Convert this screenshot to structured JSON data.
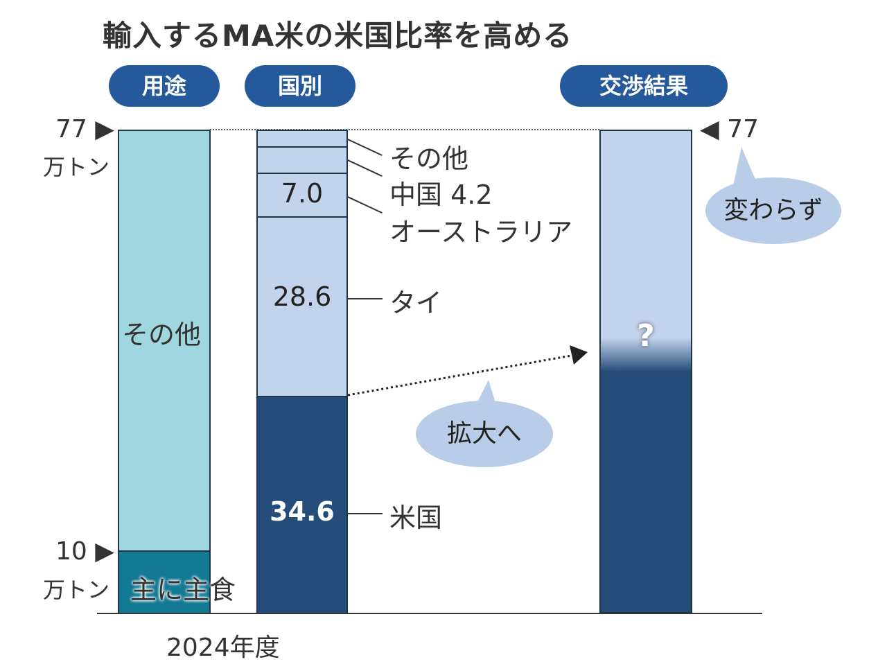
{
  "chart_data": {
    "type": "bar",
    "title": "輸入するMA米の米国比率を高める",
    "headers": {
      "use": "用途",
      "country": "国別",
      "result": "交渉結果"
    },
    "ylim": [
      0,
      77
    ],
    "unit": "万トン",
    "xlabel": "2024年度",
    "axis_labels": {
      "top": "77",
      "top_right": "77",
      "ten": "10"
    },
    "bars": [
      {
        "name": "用途",
        "segments": [
          {
            "label": "主に主食",
            "value": 10,
            "color": "#147a94"
          },
          {
            "label": "その他",
            "value": 67,
            "color": "#9fd6e0"
          }
        ]
      },
      {
        "name": "国別",
        "segments": [
          {
            "label": "米国",
            "value": 34.6,
            "display": "34.6",
            "color": "#264d7a"
          },
          {
            "label": "タイ",
            "value": 28.6,
            "display": "28.6",
            "color": "#c2d3ec"
          },
          {
            "label": "オーストラリア",
            "value": 7.0,
            "display": "7.0",
            "color": "#c2d3ec"
          },
          {
            "label": "中国",
            "value": 4.2,
            "display": "4.2",
            "color": "#c2d3ec"
          },
          {
            "label": "その他",
            "value": 2.6,
            "color": "#c2d3ec"
          }
        ]
      },
      {
        "name": "交渉結果",
        "total": 77,
        "unknown": "?",
        "color_low": "#264d7a",
        "color_high": "#c2d3ec"
      }
    ],
    "annotations": {
      "expand": "拡大へ",
      "unchanged": "変わらず"
    }
  }
}
